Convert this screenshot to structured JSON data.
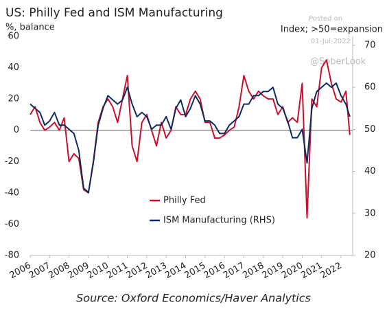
{
  "chart_data": {
    "type": "line",
    "title": "US: Philly Fed and ISM Manufacturing",
    "y_label": "%, balance",
    "y2_label": "Index; >50=expansion",
    "source": "Source: Oxford Economics/Haver Analytics",
    "watermark": [
      "Posted on",
      "01-Jul-2022",
      "@SoberLook"
    ],
    "x": [
      2006,
      2006.25,
      2006.5,
      2006.75,
      2007,
      2007.25,
      2007.5,
      2007.75,
      2008,
      2008.25,
      2008.5,
      2008.75,
      2009,
      2009.25,
      2009.5,
      2009.75,
      2010,
      2010.25,
      2010.5,
      2010.75,
      2011,
      2011.25,
      2011.5,
      2011.75,
      2012,
      2012.25,
      2012.5,
      2012.75,
      2013,
      2013.25,
      2013.5,
      2013.75,
      2014,
      2014.25,
      2014.5,
      2014.75,
      2015,
      2015.25,
      2015.5,
      2015.75,
      2016,
      2016.25,
      2016.5,
      2016.75,
      2017,
      2017.25,
      2017.5,
      2017.75,
      2018,
      2018.25,
      2018.5,
      2018.75,
      2019,
      2019.25,
      2019.5,
      2019.75,
      2020,
      2020.25,
      2020.5,
      2020.75,
      2021,
      2021.25,
      2021.5,
      2021.75,
      2022,
      2022.25,
      2022.45
    ],
    "series": [
      {
        "name": "Philly Fed",
        "color": "#c8102e",
        "values": [
          10,
          15,
          5,
          0,
          2,
          5,
          0,
          8,
          -20,
          -15,
          -18,
          -38,
          -40,
          -20,
          5,
          15,
          20,
          15,
          5,
          20,
          35,
          -10,
          -20,
          5,
          10,
          0,
          -10,
          5,
          -5,
          0,
          15,
          10,
          10,
          20,
          25,
          20,
          5,
          5,
          -5,
          -5,
          -3,
          0,
          2,
          15,
          35,
          25,
          20,
          25,
          22,
          20,
          20,
          10,
          15,
          5,
          8,
          5,
          30,
          -56,
          20,
          15,
          40,
          45,
          30,
          20,
          18,
          25,
          -3
        ]
      },
      {
        "name": "ISM Manufacturing (RHS)",
        "color": "#0b2a5e",
        "axis": "y2",
        "values": [
          56,
          55,
          54,
          51,
          52,
          54,
          51,
          51,
          50,
          49,
          45,
          36,
          35,
          42,
          51,
          55,
          58,
          57,
          56,
          57,
          60,
          56,
          53,
          54,
          53,
          50,
          51,
          51,
          53,
          50,
          55,
          57,
          53,
          55,
          58,
          56,
          52,
          52,
          51,
          49,
          49,
          51,
          52,
          53,
          56,
          56,
          58,
          58,
          59,
          59,
          60,
          56,
          55,
          52,
          48,
          48,
          50,
          42,
          55,
          59,
          60,
          61,
          60,
          61,
          58,
          56,
          53
        ]
      }
    ],
    "xlim": [
      2006,
      2022.6
    ],
    "xticks": [
      2006,
      2007,
      2008,
      2009,
      2010,
      2011,
      2012,
      2013,
      2014,
      2015,
      2016,
      2017,
      2018,
      2019,
      2020,
      2021,
      2022
    ],
    "ylim": [
      -80,
      60
    ],
    "yticks": [
      60,
      40,
      20,
      0,
      -20,
      -40,
      -60,
      -80
    ],
    "y2lim": [
      20,
      72.1
    ],
    "y2ticks": [
      20,
      30,
      40,
      50,
      60,
      70
    ]
  }
}
